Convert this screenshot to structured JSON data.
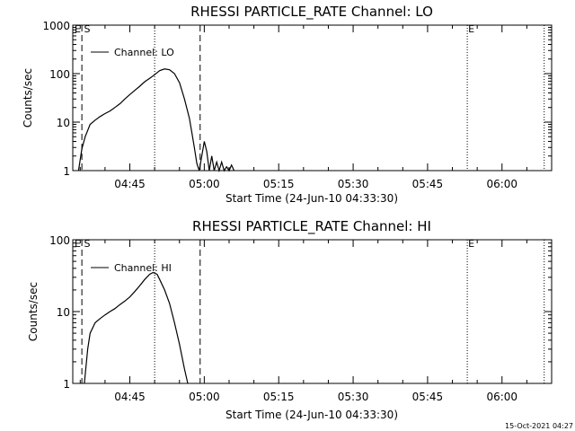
{
  "colors": {
    "background": "#ffffff",
    "foreground": "#000000"
  },
  "footer": {
    "timestamp": "15-Oct-2021 04:27"
  },
  "chart_data": [
    {
      "type": "line",
      "title": "RHESSI PARTICLE_RATE Channel: LO",
      "xlabel": "Start Time (24-Jun-10 04:33:30)",
      "ylabel": "Counts/sec",
      "yscale": "log",
      "xlim": [
        "04:33:30",
        "06:10:00"
      ],
      "ylim": [
        1,
        1000
      ],
      "xticks": [
        "04:45",
        "05:00",
        "05:15",
        "05:30",
        "05:45",
        "06:00"
      ],
      "yticks": [
        {
          "value": 1,
          "label": "1"
        },
        {
          "value": 10,
          "label": "10"
        },
        {
          "value": 100,
          "label": "100"
        },
        {
          "value": 1000,
          "label": "1000"
        }
      ],
      "legend": {
        "label": "Channel: LO",
        "position": "top-left"
      },
      "markers": [
        {
          "time": "04:35:20",
          "style": "dashed",
          "label": ""
        },
        {
          "time": "04:50:00",
          "style": "dotted",
          "label": ""
        },
        {
          "time": "04:59:10",
          "style": "dashed",
          "label": ""
        },
        {
          "time": "05:53:00",
          "style": "dotted",
          "label": "E"
        },
        {
          "time": "06:08:30",
          "style": "dotted",
          "label": ""
        }
      ],
      "corner_label": "E S",
      "series": [
        {
          "x": [
            "04:34:40",
            "04:35:20",
            "04:36:00",
            "04:37:00",
            "04:38:00",
            "04:39:00",
            "04:40:00",
            "04:41:00",
            "04:42:00",
            "04:43:00",
            "04:44:00",
            "04:45:00",
            "04:46:00",
            "04:47:00",
            "04:48:00",
            "04:49:00",
            "04:50:00",
            "04:51:00",
            "04:52:00",
            "04:53:00",
            "04:54:00",
            "04:55:00",
            "04:56:00",
            "04:57:00",
            "04:57:30",
            "04:58:00",
            "04:58:30",
            "04:59:00",
            "04:59:30",
            "05:00:00",
            "05:00:30",
            "05:01:00",
            "05:01:30",
            "05:02:00",
            "05:02:30",
            "05:03:00",
            "05:03:30",
            "05:04:00",
            "05:04:30",
            "05:05:00",
            "05:05:30",
            "05:06:00"
          ],
          "values": [
            1,
            2.8,
            5,
            9,
            11,
            13,
            15,
            17,
            20,
            24,
            30,
            37,
            45,
            55,
            68,
            80,
            95,
            115,
            125,
            120,
            100,
            65,
            30,
            12,
            6,
            3,
            1.4,
            1,
            2,
            4,
            2.5,
            1,
            2,
            1,
            1.5,
            1,
            1.5,
            1,
            1.2,
            1,
            1.3,
            1
          ]
        }
      ]
    },
    {
      "type": "line",
      "title": "RHESSI PARTICLE_RATE Channel: HI",
      "xlabel": "Start Time (24-Jun-10 04:33:30)",
      "ylabel": "Counts/sec",
      "yscale": "log",
      "xlim": [
        "04:33:30",
        "06:10:00"
      ],
      "ylim": [
        1,
        100
      ],
      "xticks": [
        "04:45",
        "05:00",
        "05:15",
        "05:30",
        "05:45",
        "06:00"
      ],
      "yticks": [
        {
          "value": 1,
          "label": "1"
        },
        {
          "value": 10,
          "label": "10"
        },
        {
          "value": 100,
          "label": "100"
        }
      ],
      "legend": {
        "label": "Channel: HI",
        "position": "top-left"
      },
      "markers": [
        {
          "time": "04:35:20",
          "style": "dashed",
          "label": ""
        },
        {
          "time": "04:50:00",
          "style": "dotted",
          "label": ""
        },
        {
          "time": "04:59:10",
          "style": "dashed",
          "label": ""
        },
        {
          "time": "05:53:00",
          "style": "dotted",
          "label": "E"
        },
        {
          "time": "06:08:30",
          "style": "dotted",
          "label": ""
        }
      ],
      "corner_label": "E S",
      "series": [
        {
          "x": [
            "04:35:50",
            "04:36:30",
            "04:37:00",
            "04:38:00",
            "04:39:00",
            "04:40:00",
            "04:41:00",
            "04:42:00",
            "04:43:00",
            "04:44:00",
            "04:45:00",
            "04:46:00",
            "04:47:00",
            "04:48:00",
            "04:49:00",
            "04:49:40",
            "04:50:30",
            "04:51:00",
            "04:52:00",
            "04:53:00",
            "04:54:00",
            "04:55:00",
            "04:56:00",
            "04:56:40"
          ],
          "values": [
            1,
            3,
            5,
            7,
            8,
            9,
            10,
            11,
            12.5,
            14,
            16,
            19,
            23,
            28,
            33,
            35,
            33,
            28,
            20,
            13,
            7,
            3.5,
            1.6,
            1
          ]
        }
      ]
    }
  ]
}
